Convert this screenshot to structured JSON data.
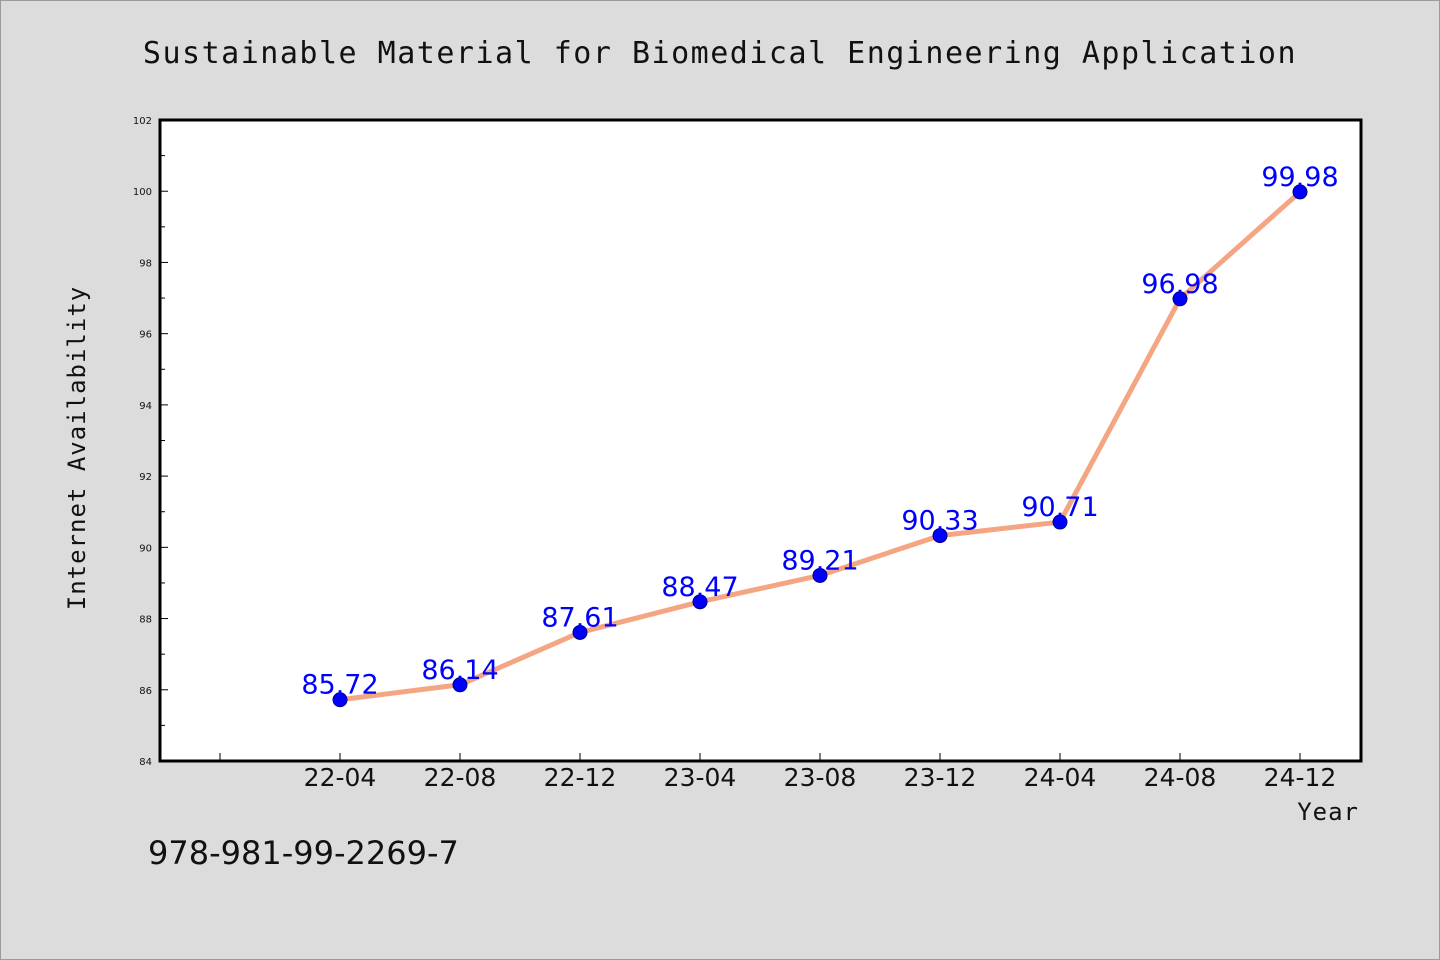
{
  "chart_data": {
    "type": "line",
    "title": "Sustainable Material for Biomedical Engineering Application",
    "xlabel": "Year",
    "ylabel": "Internet Availability",
    "categories": [
      "22-04",
      "22-08",
      "22-12",
      "23-04",
      "23-08",
      "23-12",
      "24-04",
      "24-08",
      "24-12"
    ],
    "series": [
      {
        "values": [
          85.72,
          86.14,
          87.61,
          88.47,
          89.21,
          90.33,
          90.71,
          96.98,
          99.98
        ],
        "labels": [
          "85.72",
          "86.14",
          "87.61",
          "88.47",
          "89.21",
          "90.33",
          "90.71",
          "96.98",
          "99.98"
        ],
        "line_color": "#f4a582",
        "marker_color": "#0000ff"
      }
    ],
    "ylim": [
      84,
      102
    ],
    "yticks": [
      "84",
      "86",
      "88",
      "90",
      "92",
      "94",
      "96",
      "98",
      "100",
      "102"
    ],
    "grid": false,
    "legend": "none"
  },
  "footer": {
    "isbn": "978-981-99-2269-7"
  },
  "colors": {
    "background": "#dcdcdc",
    "plot_background": "#ffffff",
    "line": "#f4a582",
    "marker": "#0000ff",
    "data_label": "#0000ff"
  }
}
